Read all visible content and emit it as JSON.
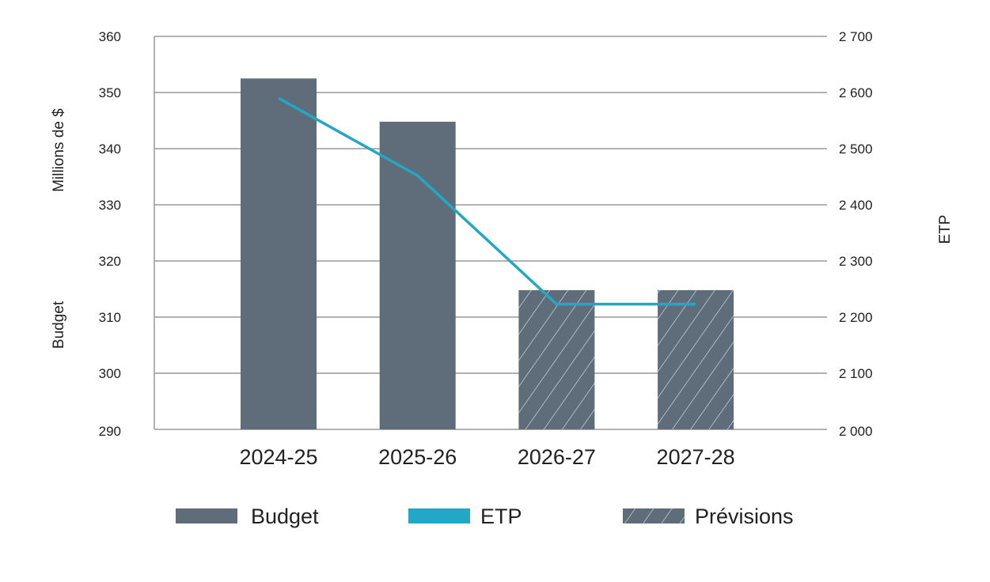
{
  "chart_data": {
    "type": "bar",
    "categories": [
      "2024-25",
      "2025-26",
      "2026-27",
      "2027-28"
    ],
    "series": [
      {
        "name": "Budget",
        "type": "bar",
        "axis": "left",
        "values": [
          352.5,
          344.8,
          314.8,
          314.8
        ],
        "forecast": [
          false,
          false,
          true,
          true
        ]
      },
      {
        "name": "ETP",
        "type": "line",
        "axis": "right",
        "values": [
          2590,
          2452,
          2223,
          2223
        ]
      }
    ],
    "left_axis": {
      "label_lines": [
        "Millions de $",
        "Budget"
      ],
      "ylim": [
        290,
        360
      ],
      "ticks": [
        "290",
        "300",
        "310",
        "320",
        "330",
        "340",
        "350",
        "360"
      ],
      "tick_values": [
        290,
        300,
        310,
        320,
        330,
        340,
        350,
        360
      ]
    },
    "right_axis": {
      "label": "ETP",
      "ylim": [
        2000,
        2700
      ],
      "ticks": [
        "2 000",
        "2 100",
        "2 200",
        "2 300",
        "2 400",
        "2 500",
        "2 600",
        "2 700"
      ],
      "tick_values": [
        2000,
        2100,
        2200,
        2300,
        2400,
        2500,
        2600,
        2700
      ]
    },
    "legend": {
      "placement": "bottom",
      "items": [
        "Budget",
        "ETP",
        "Prévisions"
      ]
    },
    "grid": true,
    "colors": {
      "bar": "#5f6d7a",
      "line": "#22a8c4",
      "grid": "#999999",
      "hatch": "#c8d0d8"
    }
  }
}
